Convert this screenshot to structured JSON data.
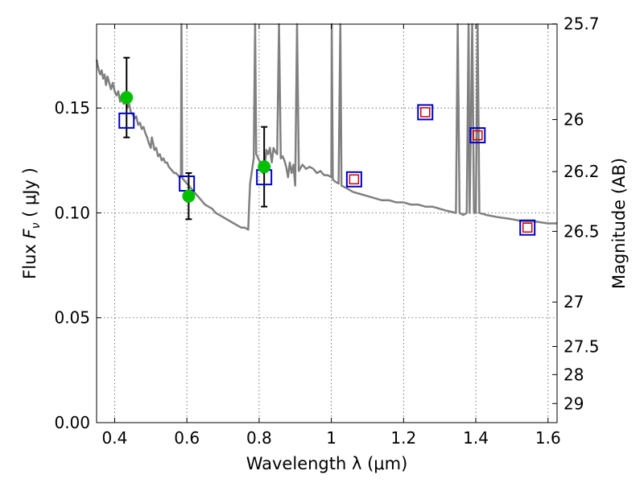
{
  "chart_data": {
    "type": "scatter",
    "xlabel": "Wavelength  λ (μm)",
    "ylabel_left": {
      "prefix": "Flux  ",
      "symbol": "F",
      "subscript": "ν",
      "units": "  ( μJy )"
    },
    "ylabel_right": "Magnitude (AB)",
    "xlim": [
      0.35,
      1.625
    ],
    "ylim": [
      0.0,
      0.19
    ],
    "grid": true,
    "x_ticks": [
      {
        "value": 0.4,
        "label": "0.4"
      },
      {
        "value": 0.6,
        "label": "0.6"
      },
      {
        "value": 0.8,
        "label": "0.8"
      },
      {
        "value": 1.0,
        "label": "1"
      },
      {
        "value": 1.2,
        "label": "1.2"
      },
      {
        "value": 1.4,
        "label": "1.4"
      },
      {
        "value": 1.6,
        "label": "1.6"
      }
    ],
    "y_ticks": [
      {
        "value": 0.0,
        "label": "0.00"
      },
      {
        "value": 0.05,
        "label": "0.05"
      },
      {
        "value": 0.1,
        "label": "0.10"
      },
      {
        "value": 0.15,
        "label": "0.15"
      }
    ],
    "right_ticks": [
      {
        "flux": 0.1901,
        "label": "25.7"
      },
      {
        "flux": 0.1445,
        "label": "26"
      },
      {
        "flux": 0.1197,
        "label": "26.2"
      },
      {
        "flux": 0.0912,
        "label": "26.5"
      },
      {
        "flux": 0.0575,
        "label": "27"
      },
      {
        "flux": 0.0363,
        "label": "27.5"
      },
      {
        "flux": 0.0229,
        "label": "28"
      },
      {
        "flux": 0.0091,
        "label": "29"
      }
    ],
    "colors": {
      "model": "#808080",
      "observed": "#00c000",
      "model_box": "#0000cc",
      "nir_box": "#cc0000"
    },
    "series": [
      {
        "kind": "model_spectrum",
        "points": [
          [
            0.35,
            0.173
          ],
          [
            0.356,
            0.168
          ],
          [
            0.36,
            0.166
          ],
          [
            0.364,
            0.168
          ],
          [
            0.368,
            0.164
          ],
          [
            0.372,
            0.166
          ],
          [
            0.376,
            0.161
          ],
          [
            0.38,
            0.165
          ],
          [
            0.385,
            0.162
          ],
          [
            0.39,
            0.159
          ],
          [
            0.395,
            0.162
          ],
          [
            0.4,
            0.158
          ],
          [
            0.405,
            0.156
          ],
          [
            0.41,
            0.158
          ],
          [
            0.415,
            0.153
          ],
          [
            0.42,
            0.155
          ],
          [
            0.425,
            0.152
          ],
          [
            0.43,
            0.154
          ],
          [
            0.435,
            0.15
          ],
          [
            0.44,
            0.152
          ],
          [
            0.445,
            0.148
          ],
          [
            0.45,
            0.147
          ],
          [
            0.455,
            0.145
          ],
          [
            0.46,
            0.146
          ],
          [
            0.465,
            0.142
          ],
          [
            0.47,
            0.143
          ],
          [
            0.475,
            0.14
          ],
          [
            0.48,
            0.141
          ],
          [
            0.485,
            0.138
          ],
          [
            0.49,
            0.136
          ],
          [
            0.495,
            0.133
          ],
          [
            0.5,
            0.131
          ],
          [
            0.503,
            0.136
          ],
          [
            0.507,
            0.133
          ],
          [
            0.51,
            0.13
          ],
          [
            0.515,
            0.131
          ],
          [
            0.52,
            0.127
          ],
          [
            0.525,
            0.128
          ],
          [
            0.53,
            0.125
          ],
          [
            0.535,
            0.126
          ],
          [
            0.54,
            0.124
          ],
          [
            0.545,
            0.124
          ],
          [
            0.55,
            0.122
          ],
          [
            0.555,
            0.121
          ],
          [
            0.56,
            0.12
          ],
          [
            0.565,
            0.119
          ],
          [
            0.57,
            0.119
          ],
          [
            0.575,
            0.118
          ],
          [
            0.58,
            0.117
          ],
          [
            0.5835,
            0.117
          ],
          [
            0.585,
            0.19
          ],
          [
            0.587,
            0.117
          ],
          [
            0.59,
            0.116
          ],
          [
            0.595,
            0.115
          ],
          [
            0.6,
            0.114
          ],
          [
            0.61,
            0.112
          ],
          [
            0.62,
            0.11
          ],
          [
            0.63,
            0.108
          ],
          [
            0.64,
            0.106
          ],
          [
            0.65,
            0.104
          ],
          [
            0.66,
            0.103
          ],
          [
            0.67,
            0.102
          ],
          [
            0.68,
            0.1
          ],
          [
            0.69,
            0.099
          ],
          [
            0.7,
            0.098
          ],
          [
            0.71,
            0.097
          ],
          [
            0.72,
            0.096
          ],
          [
            0.73,
            0.095
          ],
          [
            0.74,
            0.094
          ],
          [
            0.75,
            0.093
          ],
          [
            0.76,
            0.093
          ],
          [
            0.77,
            0.092
          ],
          [
            0.772,
            0.102
          ],
          [
            0.775,
            0.114
          ],
          [
            0.78,
            0.12
          ],
          [
            0.785,
            0.126
          ],
          [
            0.789,
            0.19
          ],
          [
            0.792,
            0.128
          ],
          [
            0.795,
            0.127
          ],
          [
            0.8,
            0.125
          ],
          [
            0.805,
            0.124
          ],
          [
            0.81,
            0.119
          ],
          [
            0.815,
            0.121
          ],
          [
            0.82,
            0.13
          ],
          [
            0.825,
            0.128
          ],
          [
            0.83,
            0.131
          ],
          [
            0.835,
            0.124
          ],
          [
            0.84,
            0.131
          ],
          [
            0.845,
            0.129
          ],
          [
            0.85,
            0.128
          ],
          [
            0.855,
            0.19
          ],
          [
            0.86,
            0.126
          ],
          [
            0.865,
            0.127
          ],
          [
            0.87,
            0.125
          ],
          [
            0.875,
            0.122
          ],
          [
            0.88,
            0.117
          ],
          [
            0.885,
            0.124
          ],
          [
            0.89,
            0.119
          ],
          [
            0.895,
            0.123
          ],
          [
            0.9,
            0.113
          ],
          [
            0.905,
            0.19
          ],
          [
            0.91,
            0.12
          ],
          [
            0.92,
            0.123
          ],
          [
            0.93,
            0.121
          ],
          [
            0.94,
            0.122
          ],
          [
            0.95,
            0.121
          ],
          [
            0.96,
            0.119
          ],
          [
            0.97,
            0.12
          ],
          [
            0.98,
            0.118
          ],
          [
            0.99,
            0.118
          ],
          [
            1.0,
            0.117
          ],
          [
            1.001,
            0.19
          ],
          [
            1.004,
            0.116
          ],
          [
            1.01,
            0.115
          ],
          [
            1.02,
            0.114
          ],
          [
            1.025,
            0.19
          ],
          [
            1.028,
            0.113
          ],
          [
            1.04,
            0.112
          ],
          [
            1.06,
            0.11
          ],
          [
            1.08,
            0.109
          ],
          [
            1.1,
            0.108
          ],
          [
            1.12,
            0.107
          ],
          [
            1.14,
            0.106
          ],
          [
            1.16,
            0.106
          ],
          [
            1.18,
            0.105
          ],
          [
            1.2,
            0.105
          ],
          [
            1.22,
            0.104
          ],
          [
            1.24,
            0.104
          ],
          [
            1.26,
            0.103
          ],
          [
            1.28,
            0.103
          ],
          [
            1.3,
            0.102
          ],
          [
            1.32,
            0.101
          ],
          [
            1.345,
            0.1
          ],
          [
            1.35,
            0.19
          ],
          [
            1.355,
            0.1
          ],
          [
            1.365,
            0.099
          ],
          [
            1.375,
            0.1
          ],
          [
            1.38,
            0.19
          ],
          [
            1.383,
            0.1
          ],
          [
            1.39,
            0.19
          ],
          [
            1.395,
            0.1
          ],
          [
            1.4,
            0.1
          ],
          [
            1.405,
            0.19
          ],
          [
            1.41,
            0.1
          ],
          [
            1.43,
            0.099
          ],
          [
            1.46,
            0.098
          ],
          [
            1.5,
            0.097
          ],
          [
            1.53,
            0.096
          ],
          [
            1.56,
            0.096
          ],
          [
            1.6,
            0.095
          ],
          [
            1.625,
            0.095
          ]
        ]
      },
      {
        "kind": "observed",
        "points": [
          {
            "x": 0.433,
            "y": 0.155,
            "err": 0.019
          },
          {
            "x": 0.605,
            "y": 0.108,
            "err": 0.011
          },
          {
            "x": 0.814,
            "y": 0.122,
            "err": 0.019
          }
        ]
      },
      {
        "kind": "model_bandpass",
        "points": [
          {
            "x": 0.433,
            "y": 0.144
          },
          {
            "x": 0.6,
            "y": 0.114
          },
          {
            "x": 0.814,
            "y": 0.117
          },
          {
            "x": 1.063,
            "y": 0.116
          },
          {
            "x": 1.26,
            "y": 0.148
          },
          {
            "x": 1.405,
            "y": 0.137
          },
          {
            "x": 1.543,
            "y": 0.093
          }
        ]
      },
      {
        "kind": "nir_bandpass",
        "points": [
          {
            "x": 1.063,
            "y": 0.116
          },
          {
            "x": 1.26,
            "y": 0.148
          },
          {
            "x": 1.405,
            "y": 0.137
          },
          {
            "x": 1.543,
            "y": 0.093
          }
        ]
      }
    ]
  }
}
